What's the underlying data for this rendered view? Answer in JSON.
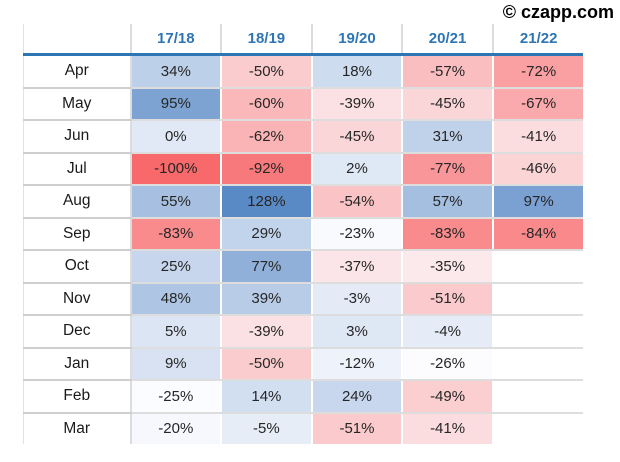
{
  "copyright": "© czapp.com",
  "table": {
    "corner_label": "",
    "columns": [
      "17/18",
      "18/19",
      "19/20",
      "20/21",
      "21/22"
    ],
    "row_labels": [
      "Apr",
      "May",
      "Jun",
      "Jul",
      "Aug",
      "Sep",
      "Oct",
      "Nov",
      "Dec",
      "Jan",
      "Feb",
      "Mar"
    ],
    "value_suffix": "%"
  },
  "chart_data": {
    "type": "heatmap",
    "title": "",
    "unit": "%",
    "categories": [
      "Apr",
      "May",
      "Jun",
      "Jul",
      "Aug",
      "Sep",
      "Oct",
      "Nov",
      "Dec",
      "Jan",
      "Feb",
      "Mar"
    ],
    "series": [
      {
        "name": "17/18",
        "values": [
          34,
          95,
          0,
          -100,
          55,
          -83,
          25,
          48,
          5,
          9,
          -25,
          -20
        ]
      },
      {
        "name": "18/19",
        "values": [
          -50,
          -60,
          -62,
          -92,
          128,
          29,
          77,
          39,
          -39,
          -50,
          14,
          -5
        ]
      },
      {
        "name": "19/20",
        "values": [
          18,
          -39,
          -45,
          2,
          -54,
          -23,
          -37,
          -3,
          3,
          -12,
          24,
          -51
        ]
      },
      {
        "name": "20/21",
        "values": [
          -57,
          -45,
          31,
          -77,
          57,
          -83,
          -35,
          -51,
          -4,
          -26,
          -49,
          -41
        ]
      },
      {
        "name": "21/22",
        "values": [
          -72,
          -67,
          -41,
          -46,
          97,
          -84,
          null,
          null,
          null,
          null,
          null,
          null
        ]
      }
    ],
    "colorscale": {
      "type": "3-color-diverging",
      "min_color": "#F8696B",
      "mid_color": "#FCFCFF",
      "max_color": "#5A8AC6",
      "domain": [
        -100,
        -25.5,
        128
      ]
    },
    "layout_hints": {
      "grid": "light-gray horizontal gridlines, header underlined in blue",
      "legend": "none",
      "missing_cells": "21/22 Oct–Mar are blank"
    }
  },
  "colors": {
    "header_text": "#2E75B6",
    "header_underline": "#2E75B6",
    "watermark_text": "#000000",
    "value_text": "#262626",
    "gridline": "#D9D9D9",
    "negative_extreme": "#F8696B",
    "neutral": "#FCFCFF",
    "positive_extreme": "#5A8AC6"
  }
}
